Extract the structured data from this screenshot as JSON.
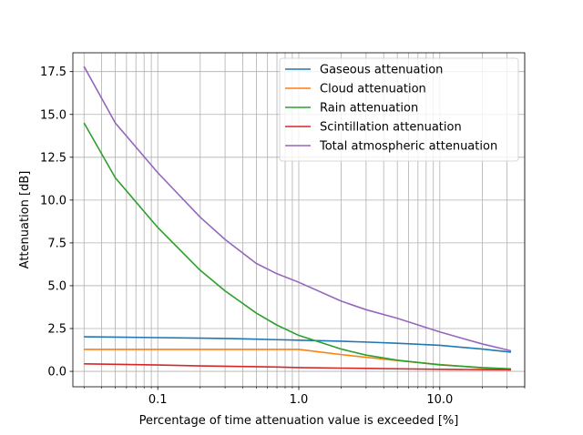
{
  "chart_data": {
    "type": "line",
    "title": "",
    "xlabel": "Percentage of time attenuation value is exceeded [%]",
    "ylabel": "Attenuation [dB]",
    "xscale": "log",
    "xlim": [
      0.025,
      40
    ],
    "ylim": [
      -0.9,
      18.6
    ],
    "x_ticks": [
      {
        "value": 0.1,
        "label": "0.1"
      },
      {
        "value": 1,
        "label": "1.0"
      },
      {
        "value": 10,
        "label": "10.0"
      }
    ],
    "y_ticks": [
      {
        "value": 0,
        "label": "0.0"
      },
      {
        "value": 2.5,
        "label": "2.5"
      },
      {
        "value": 5,
        "label": "5.0"
      },
      {
        "value": 7.5,
        "label": "7.5"
      },
      {
        "value": 10,
        "label": "10.0"
      },
      {
        "value": 12.5,
        "label": "12.5"
      },
      {
        "value": 15,
        "label": "15.0"
      },
      {
        "value": 17.5,
        "label": "17.5"
      }
    ],
    "grid": true,
    "grid_minor_x": true,
    "legend_position": "top-right",
    "x": [
      0.03,
      0.05,
      0.1,
      0.2,
      0.3,
      0.5,
      0.7,
      1.0,
      2.0,
      3.0,
      5.0,
      10.0,
      20.0,
      32.0
    ],
    "series": [
      {
        "name": "Gaseous attenuation",
        "color": "#1f77b4",
        "values": [
          2.02,
          2.0,
          1.97,
          1.94,
          1.92,
          1.88,
          1.85,
          1.82,
          1.76,
          1.71,
          1.64,
          1.52,
          1.3,
          1.12
        ]
      },
      {
        "name": "Cloud attenuation",
        "color": "#ff7f0e",
        "values": [
          1.28,
          1.28,
          1.28,
          1.28,
          1.28,
          1.28,
          1.28,
          1.28,
          0.98,
          0.82,
          0.63,
          0.4,
          0.2,
          0.08
        ]
      },
      {
        "name": "Rain attenuation",
        "color": "#2ca02c",
        "values": [
          14.5,
          11.3,
          8.4,
          5.9,
          4.7,
          3.4,
          2.7,
          2.1,
          1.3,
          0.95,
          0.65,
          0.38,
          0.22,
          0.15
        ]
      },
      {
        "name": "Scintillation attenuation",
        "color": "#d62728",
        "values": [
          0.44,
          0.41,
          0.37,
          0.32,
          0.3,
          0.27,
          0.25,
          0.22,
          0.19,
          0.17,
          0.15,
          0.12,
          0.1,
          0.09
        ]
      },
      {
        "name": "Total atmospheric attenuation",
        "color": "#9467bd",
        "values": [
          17.8,
          14.5,
          11.6,
          9.0,
          7.7,
          6.3,
          5.7,
          5.2,
          4.1,
          3.6,
          3.1,
          2.3,
          1.6,
          1.2
        ]
      }
    ]
  }
}
